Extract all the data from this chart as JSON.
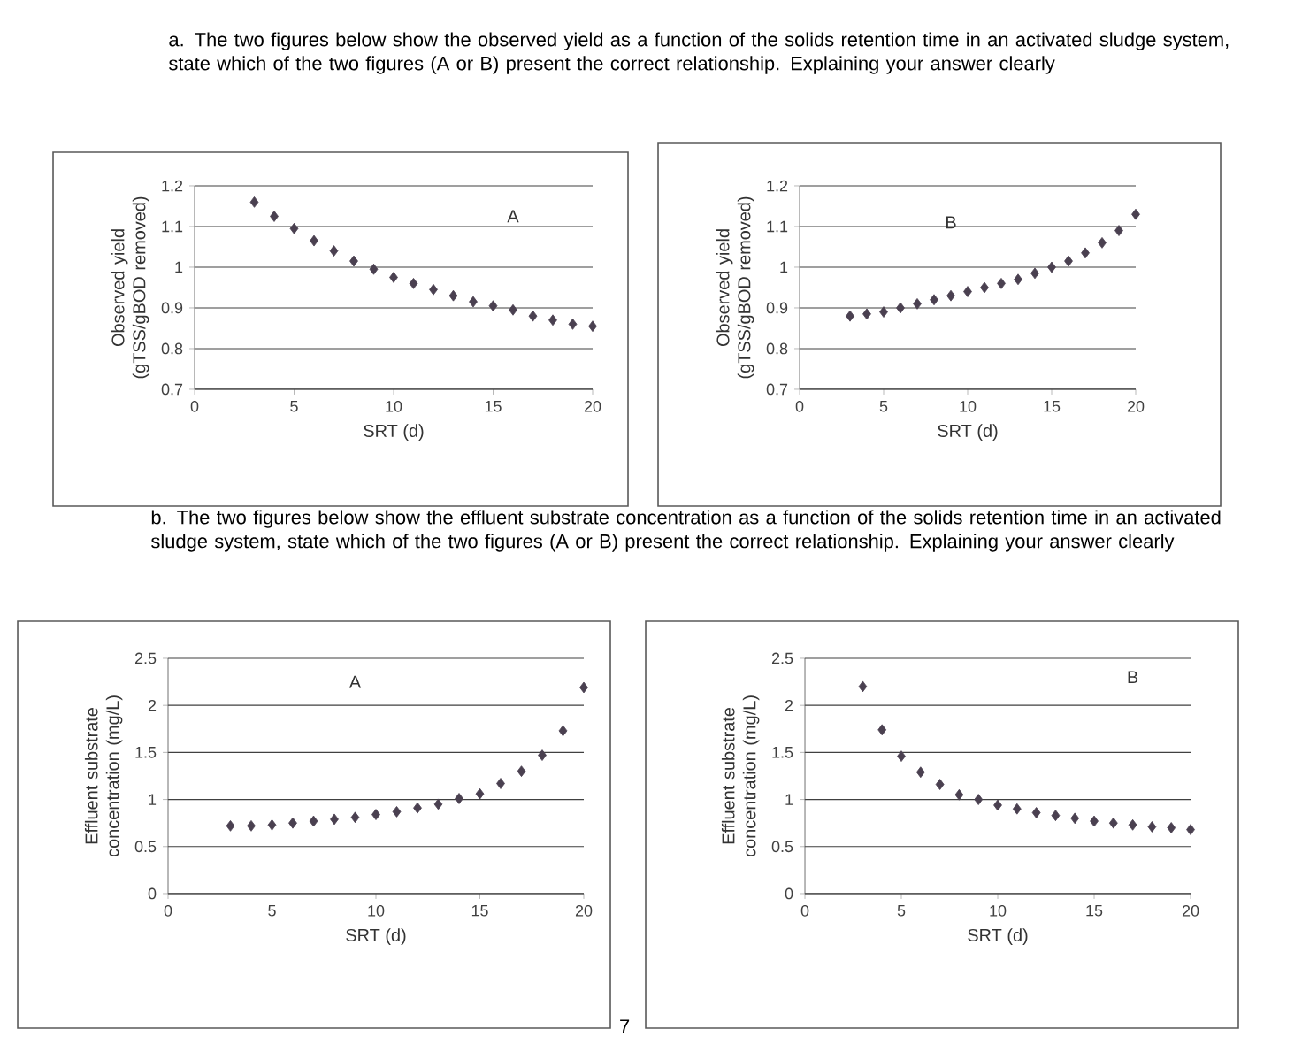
{
  "chart_data": [
    {
      "type": "scatter",
      "title": "A",
      "xlabel": "SRT (d)",
      "ylabel": "Observed yield (gTSS/gBOD removed)",
      "annotations": [
        "a. The two figures below show the observed yield as a function of the solids retention time in an activated sludge system, state which of the two figures (A or B) present the correct relationship. Explaining your answer clearly"
      ],
      "x": [
        3,
        4,
        5,
        6,
        7,
        8,
        9,
        10,
        11,
        12,
        13,
        14,
        15,
        16,
        17,
        18,
        19,
        20
      ],
      "values": [
        1.16,
        1.125,
        1.095,
        1.065,
        1.04,
        1.015,
        0.995,
        0.975,
        0.96,
        0.945,
        0.93,
        0.915,
        0.905,
        0.895,
        0.88,
        0.87,
        0.86,
        0.855
      ],
      "color": "#4a4050",
      "marker": "diamond",
      "grid": "y",
      "xlim": [
        0,
        20
      ],
      "xticks": [
        0,
        5,
        10,
        15,
        20
      ],
      "ylim": [
        0.7,
        1.2
      ],
      "yticks": [
        0.7,
        0.8,
        0.9,
        1,
        1.1,
        1.2
      ]
    },
    {
      "type": "scatter",
      "title": "B",
      "xlabel": "SRT (d)",
      "ylabel": "Observed yield (gTSS/gBOD removed)",
      "x": [
        3,
        4,
        5,
        6,
        7,
        8,
        9,
        10,
        11,
        12,
        13,
        14,
        15,
        16,
        17,
        18,
        19,
        20
      ],
      "values": [
        0.88,
        0.885,
        0.89,
        0.9,
        0.91,
        0.92,
        0.93,
        0.94,
        0.95,
        0.96,
        0.97,
        0.985,
        1.0,
        1.015,
        1.035,
        1.06,
        1.09,
        1.13
      ],
      "color": "#4a4050",
      "marker": "diamond",
      "grid": "y",
      "xlim": [
        0,
        20
      ],
      "xticks": [
        0,
        5,
        10,
        15,
        20
      ],
      "ylim": [
        0.7,
        1.2
      ],
      "yticks": [
        0.7,
        0.8,
        0.9,
        1,
        1.1,
        1.2
      ]
    },
    {
      "type": "scatter",
      "title": "A",
      "xlabel": "SRT (d)",
      "ylabel": "Effluent substrate concentration (mg/L)",
      "annotations": [
        "b. The two figures below show the effluent substrate concentration as a function of the solids retention time in an activated sludge system, state which of the two figures (A or B) present the correct relationship. Explaining your answer clearly"
      ],
      "x": [
        3,
        4,
        5,
        6,
        7,
        8,
        9,
        10,
        11,
        12,
        13,
        14,
        15,
        16,
        17,
        18,
        19,
        20
      ],
      "values": [
        0.72,
        0.72,
        0.73,
        0.75,
        0.77,
        0.79,
        0.81,
        0.84,
        0.87,
        0.91,
        0.95,
        1.01,
        1.06,
        1.17,
        1.3,
        1.47,
        1.73,
        2.19
      ],
      "color": "#4a4050",
      "marker": "diamond",
      "grid": "y",
      "xlim": [
        0,
        20
      ],
      "xticks": [
        0,
        5,
        10,
        15,
        20
      ],
      "ylim": [
        0,
        2.5
      ],
      "yticks": [
        0,
        0.5,
        1,
        1.5,
        2,
        2.5
      ]
    },
    {
      "type": "scatter",
      "title": "B",
      "xlabel": "SRT (d)",
      "ylabel": "Effluent substrate concentration (mg/L)",
      "annotations": [
        "7"
      ],
      "x": [
        3,
        4,
        5,
        6,
        7,
        8,
        9,
        10,
        11,
        12,
        13,
        14,
        15,
        16,
        17,
        18,
        19,
        20
      ],
      "values": [
        2.2,
        1.74,
        1.46,
        1.29,
        1.16,
        1.05,
        1.0,
        0.94,
        0.9,
        0.86,
        0.83,
        0.8,
        0.77,
        0.75,
        0.73,
        0.71,
        0.7,
        0.68
      ],
      "color": "#4a4050",
      "marker": "diamond",
      "grid": "y",
      "xlim": [
        0,
        20
      ],
      "xticks": [
        0,
        5,
        10,
        15,
        20
      ],
      "ylim": [
        0,
        2.5
      ],
      "yticks": [
        0,
        0.5,
        1,
        1.5,
        2,
        2.5
      ]
    }
  ]
}
